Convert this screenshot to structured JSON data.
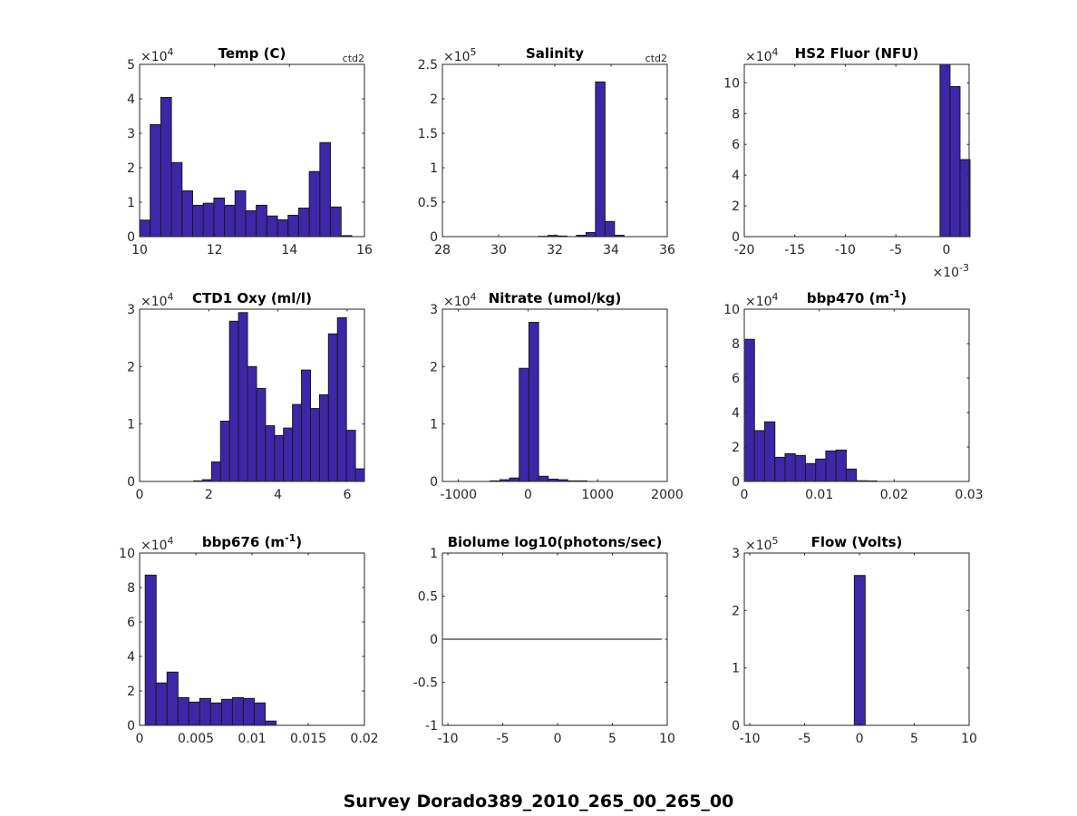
{
  "suptitle": "Survey Dorado389_2010_265_00_265_00",
  "colors": {
    "bar_fill": "#3e26a8",
    "bar_edge": "#1a1a1a",
    "axis": "#262626"
  },
  "chart_data": [
    {
      "type": "bar",
      "title": "Temp (C)",
      "title_sup": "",
      "title_suffix": "",
      "note": "ctd2",
      "xlim": [
        10,
        16
      ],
      "xticks": [
        10,
        12,
        14,
        16
      ],
      "xtick_labels": [
        "10",
        "12",
        "14",
        "16"
      ],
      "ylim": [
        0,
        5
      ],
      "yticks": [
        0,
        1,
        2,
        3,
        4,
        5
      ],
      "ytick_labels": [
        "0",
        "1",
        "2",
        "3",
        "4",
        "5"
      ],
      "y_exp_base": "×10",
      "y_exp": "4",
      "bin_start": 10,
      "bin_width": 0.283,
      "counts": [
        0.48,
        3.25,
        4.04,
        2.15,
        1.33,
        0.91,
        0.97,
        1.12,
        0.91,
        1.33,
        0.75,
        0.91,
        0.6,
        0.49,
        0.62,
        0.83,
        1.89,
        2.73,
        0.86,
        0.03
      ]
    },
    {
      "type": "bar",
      "title": "Salinity",
      "title_sup": "",
      "title_suffix": "",
      "note": "ctd2",
      "xlim": [
        28,
        36
      ],
      "xticks": [
        28,
        30,
        32,
        34,
        36
      ],
      "xtick_labels": [
        "28",
        "30",
        "32",
        "34",
        "36"
      ],
      "ylim": [
        0,
        2.5
      ],
      "yticks": [
        0,
        0.5,
        1,
        1.5,
        2,
        2.5
      ],
      "ytick_labels": [
        "0",
        "0.5",
        "1",
        "1.5",
        "2",
        "2.5"
      ],
      "y_exp_base": "×10",
      "y_exp": "5",
      "bin_start": 31.42,
      "bin_width": 0.338,
      "counts": [
        0.005,
        0.018,
        0.009,
        0,
        0.02,
        0.06,
        2.245,
        0.22,
        0.02
      ]
    },
    {
      "type": "bar",
      "title": "HS2 Fluor (NFU)",
      "title_sup": "",
      "title_suffix": "",
      "note": "",
      "xlim": [
        -0.02,
        0.00225
      ],
      "xticks": [
        -0.02,
        -0.015,
        -0.01,
        -0.005,
        0
      ],
      "xtick_labels": [
        "-20",
        "-15",
        "-10",
        "-5",
        "0"
      ],
      "x_exp_base": "×10",
      "x_exp": "-3",
      "ylim": [
        0,
        11.2
      ],
      "yticks": [
        0,
        2,
        4,
        6,
        8,
        10
      ],
      "ytick_labels": [
        "0",
        "2",
        "4",
        "6",
        "8",
        "10"
      ],
      "y_exp_base": "×10",
      "y_exp": "4",
      "bin_start": -0.00063,
      "bin_width": 0.00099,
      "counts": [
        11.5,
        9.76,
        5.01
      ]
    },
    {
      "type": "bar",
      "title": "CTD1 Oxy (ml/l)",
      "title_sup": "",
      "title_suffix": "",
      "note": "",
      "xlim": [
        0,
        6.5
      ],
      "xticks": [
        0,
        2,
        4,
        6
      ],
      "xtick_labels": [
        "0",
        "2",
        "4",
        "6"
      ],
      "ylim": [
        0,
        3
      ],
      "yticks": [
        0,
        1,
        2,
        3
      ],
      "ytick_labels": [
        "0",
        "1",
        "2",
        "3"
      ],
      "y_exp_base": "×10",
      "y_exp": "4",
      "bin_start": 0,
      "bin_width": 0.26,
      "counts": [
        0,
        0,
        0,
        0,
        0,
        0,
        0.01,
        0.03,
        0.34,
        1.05,
        2.79,
        2.94,
        2.0,
        1.62,
        0.97,
        0.8,
        0.93,
        1.34,
        1.94,
        1.27,
        1.51,
        2.57,
        2.85,
        0.89,
        0.22
      ]
    },
    {
      "type": "bar",
      "title": "Nitrate (umol/kg)",
      "title_sup": "",
      "title_suffix": "",
      "note": "",
      "xlim": [
        -1230,
        2000
      ],
      "xticks": [
        -1000,
        0,
        1000,
        2000
      ],
      "xtick_labels": [
        "-1000",
        "0",
        "1000",
        "2000"
      ],
      "ylim": [
        0,
        3
      ],
      "yticks": [
        0,
        1,
        2,
        3
      ],
      "ytick_labels": [
        "0",
        "1",
        "2",
        "3"
      ],
      "y_exp_base": "×10",
      "y_exp": "4",
      "bin_start": -543,
      "bin_width": 139,
      "counts": [
        0.01,
        0.03,
        0.06,
        1.97,
        2.77,
        0.09,
        0.04,
        0.03,
        0.01,
        0.01
      ]
    },
    {
      "type": "bar",
      "title": "bbp470 (m",
      "title_sup": "-1",
      "title_suffix": ")",
      "note": "",
      "xlim": [
        0,
        0.03
      ],
      "xticks": [
        0,
        0.01,
        0.02,
        0.03
      ],
      "xtick_labels": [
        "0",
        "0.01",
        "0.02",
        "0.03"
      ],
      "ylim": [
        0,
        10
      ],
      "yticks": [
        0,
        2,
        4,
        6,
        8,
        10
      ],
      "ytick_labels": [
        "0",
        "2",
        "4",
        "6",
        "8",
        "10"
      ],
      "y_exp_base": "×10",
      "y_exp": "4",
      "bin_start": 0,
      "bin_width": 0.00136,
      "counts": [
        8.25,
        2.95,
        3.46,
        1.4,
        1.61,
        1.51,
        1.04,
        1.3,
        1.77,
        1.82,
        0.72,
        0.04,
        0.03
      ]
    },
    {
      "type": "bar",
      "title": "bbp676 (m",
      "title_sup": "-1",
      "title_suffix": ")",
      "note": "",
      "xlim": [
        0,
        0.02
      ],
      "xticks": [
        0,
        0.005,
        0.01,
        0.015,
        0.02
      ],
      "xtick_labels": [
        "0",
        "0.005",
        "0.01",
        "0.015",
        "0.02"
      ],
      "ylim": [
        0,
        10
      ],
      "yticks": [
        0,
        2,
        4,
        6,
        8,
        10
      ],
      "ytick_labels": [
        "0",
        "2",
        "4",
        "6",
        "8",
        "10"
      ],
      "y_exp_base": "×10",
      "y_exp": "4",
      "bin_start": 0.0005,
      "bin_width": 0.00097,
      "counts": [
        8.72,
        2.46,
        3.09,
        1.61,
        1.35,
        1.56,
        1.3,
        1.51,
        1.61,
        1.56,
        1.3,
        0.25
      ]
    },
    {
      "type": "line",
      "title": "Biolume log10(photons/sec)",
      "title_sup": "",
      "title_suffix": "",
      "note": "",
      "xlim": [
        -10.5,
        10
      ],
      "xticks": [
        -10,
        -5,
        0,
        5,
        10
      ],
      "xtick_labels": [
        "-10",
        "-5",
        "0",
        "5",
        "10"
      ],
      "ylim": [
        -1,
        1
      ],
      "yticks": [
        -1,
        -0.5,
        0,
        0.5,
        1
      ],
      "ytick_labels": [
        "-1",
        "-0.5",
        "0",
        "0.5",
        "1"
      ],
      "line_x": [
        -10.5,
        9.5
      ],
      "line_y": [
        0,
        0
      ]
    },
    {
      "type": "bar",
      "title": "Flow (Volts)",
      "title_sup": "",
      "title_suffix": "",
      "note": "",
      "xlim": [
        -10.5,
        10
      ],
      "xticks": [
        -10,
        -5,
        0,
        5,
        10
      ],
      "xtick_labels": [
        "-10",
        "-5",
        "0",
        "5",
        "10"
      ],
      "ylim": [
        0,
        3
      ],
      "yticks": [
        0,
        1,
        2,
        3
      ],
      "ytick_labels": [
        "0",
        "1",
        "2",
        "3"
      ],
      "y_exp_base": "×10",
      "y_exp": "5",
      "bin_start": -0.47,
      "bin_width": 0.99,
      "counts": [
        2.61
      ]
    }
  ]
}
